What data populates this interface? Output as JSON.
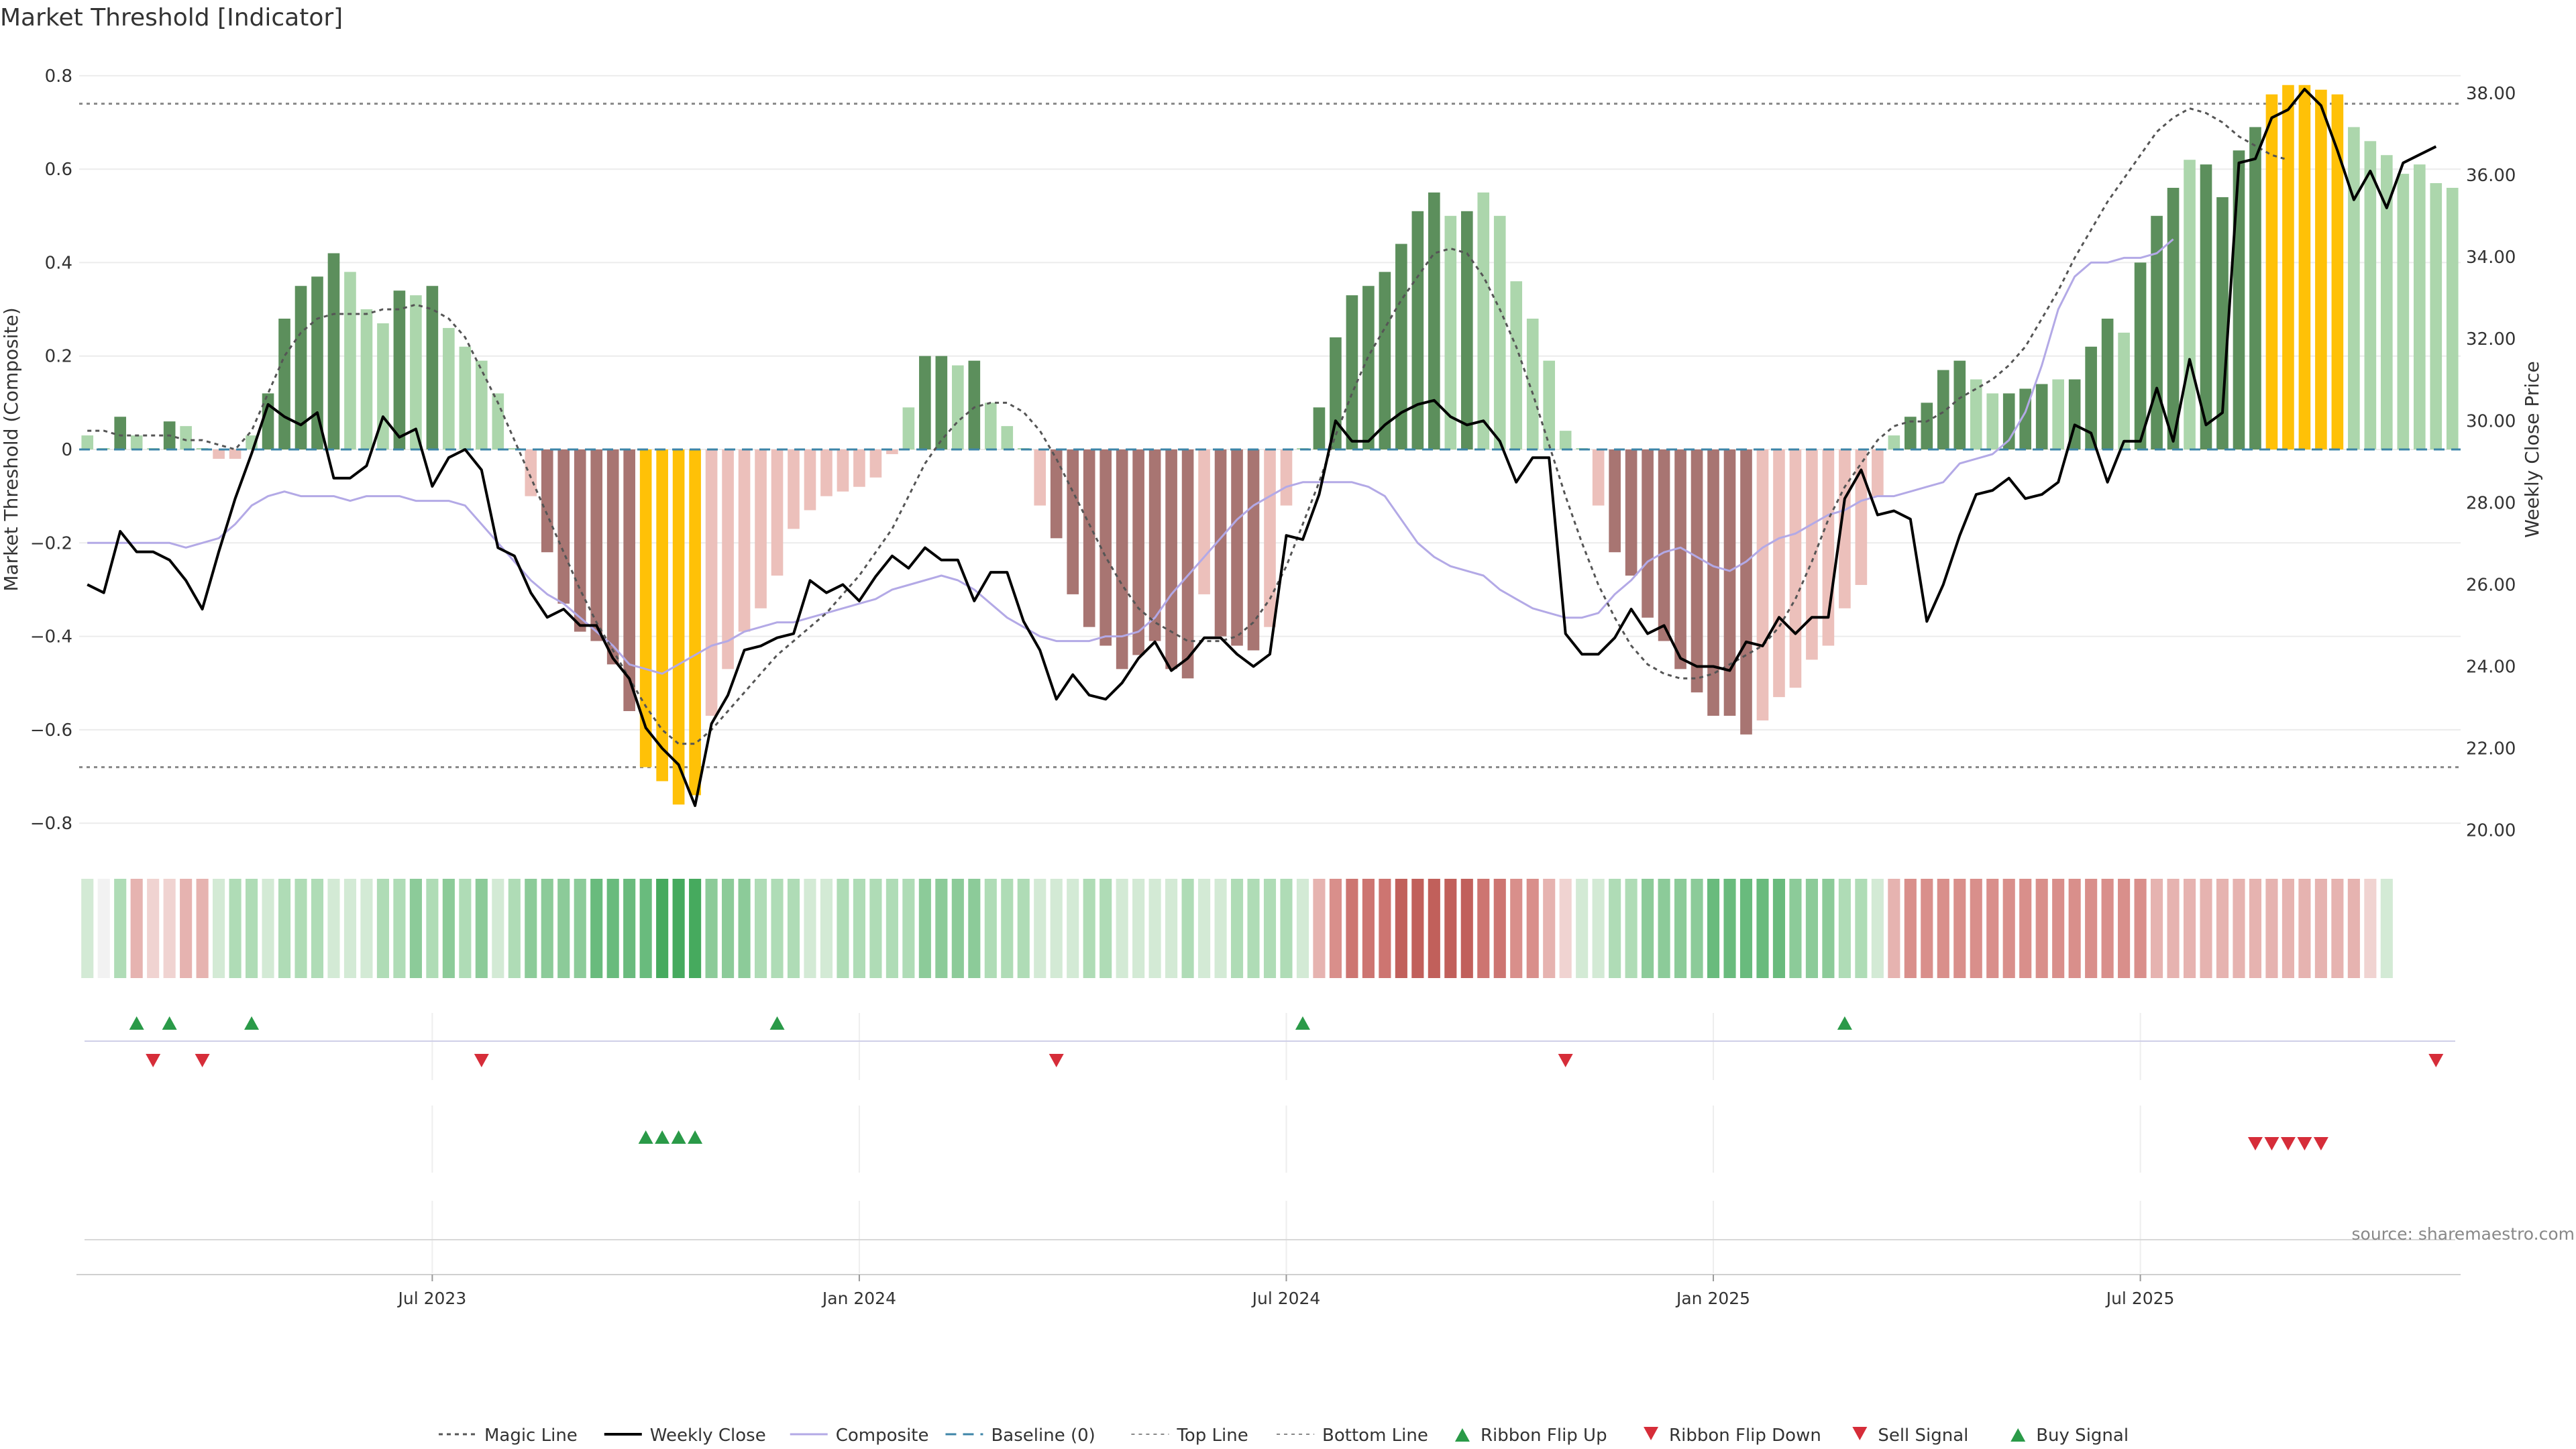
{
  "title": "Market Threshold [Indicator]",
  "source_note": "source: sharemaestro.com",
  "colors": {
    "strong_green": "#5c8f5c",
    "light_green": "#acd6ac",
    "strong_red": "#a87572",
    "light_red": "#ecc0bb",
    "extreme": "#ffc107",
    "weekly_close": "#000000",
    "composite": "#b3a9e6",
    "magic_line": "#555555",
    "baseline": "#3d85a8",
    "threshold_line": "#888888",
    "buy_signal": "#2a9a48",
    "sell_signal": "#d62d39"
  },
  "chart_data": {
    "type": "bar",
    "title": "Market Threshold [Indicator]",
    "x_tick_labels": [
      "Jul 2023",
      "Jan 2024",
      "Jul 2024",
      "Jan 2025",
      "Jul 2025"
    ],
    "x_tick_indices": [
      21,
      47,
      73,
      99,
      125
    ],
    "left_axis": {
      "label": "Market Threshold (Composite)",
      "ylim": [
        -0.85,
        0.85
      ],
      "ticks": [
        -0.8,
        -0.6,
        -0.4,
        -0.2,
        0,
        0.2,
        0.4,
        0.6,
        0.8
      ],
      "tick_labels": [
        "−0.8",
        "−0.6",
        "−0.4",
        "−0.2",
        "0",
        "0.2",
        "0.4",
        "0.6",
        "0.8"
      ]
    },
    "right_axis": {
      "label": "Weekly Close Price",
      "ylim": [
        19.6,
        39.0
      ],
      "ticks": [
        20,
        22,
        24,
        26,
        28,
        30,
        32,
        34,
        36,
        38
      ],
      "tick_labels": [
        "20.00",
        "22.00",
        "24.00",
        "26.00",
        "28.00",
        "30.00",
        "32.00",
        "34.00",
        "36.00",
        "38.00"
      ]
    },
    "top_line": 0.74,
    "bottom_line": -0.68,
    "threshold_bars": [
      0.03,
      0.0,
      0.07,
      0.03,
      0.0,
      0.06,
      0.05,
      0.0,
      -0.02,
      -0.02,
      0.03,
      0.12,
      0.28,
      0.35,
      0.37,
      0.42,
      0.38,
      0.3,
      0.27,
      0.34,
      0.33,
      0.35,
      0.26,
      0.22,
      0.19,
      0.12,
      0.0,
      -0.1,
      -0.22,
      -0.33,
      -0.39,
      -0.41,
      -0.46,
      -0.56,
      -0.68,
      -0.71,
      -0.76,
      -0.74,
      -0.57,
      -0.47,
      -0.39,
      -0.34,
      -0.27,
      -0.17,
      -0.13,
      -0.1,
      -0.09,
      -0.08,
      -0.06,
      -0.01,
      0.09,
      0.2,
      0.2,
      0.18,
      0.19,
      0.1,
      0.05,
      0.0,
      -0.12,
      -0.19,
      -0.31,
      -0.38,
      -0.42,
      -0.47,
      -0.44,
      -0.41,
      -0.47,
      -0.49,
      -0.31,
      -0.4,
      -0.42,
      -0.43,
      -0.38,
      -0.12,
      0.0,
      0.09,
      0.24,
      0.33,
      0.35,
      0.38,
      0.44,
      0.51,
      0.55,
      0.5,
      0.51,
      0.55,
      0.5,
      0.36,
      0.28,
      0.19,
      0.04,
      0.0,
      -0.12,
      -0.22,
      -0.27,
      -0.36,
      -0.41,
      -0.47,
      -0.52,
      -0.57,
      -0.57,
      -0.61,
      -0.58,
      -0.53,
      -0.51,
      -0.45,
      -0.42,
      -0.34,
      -0.29,
      -0.1,
      0.03,
      0.07,
      0.1,
      0.17,
      0.19,
      0.15,
      0.12,
      0.12,
      0.13,
      0.14,
      0.15,
      0.15,
      0.22,
      0.28,
      0.25,
      0.4,
      0.5,
      0.56,
      0.62,
      0.61,
      0.54,
      0.64,
      0.69,
      0.76,
      0.78,
      0.78,
      0.77,
      0.76,
      0.69,
      0.66,
      0.63,
      0.59,
      0.61,
      0.57,
      0.56
    ],
    "bar_class": [
      "lg",
      "lg",
      "sg",
      "lg",
      "lg",
      "sg",
      "lg",
      "lg",
      "lr",
      "lr",
      "lg",
      "sg",
      "sg",
      "sg",
      "sg",
      "sg",
      "lg",
      "lg",
      "lg",
      "sg",
      "lg",
      "sg",
      "lg",
      "lg",
      "lg",
      "lg",
      "lg",
      "lr",
      "sr",
      "sr",
      "sr",
      "sr",
      "sr",
      "sr",
      "ex",
      "ex",
      "ex",
      "ex",
      "lr",
      "lr",
      "lr",
      "lr",
      "lr",
      "lr",
      "lr",
      "lr",
      "lr",
      "lr",
      "lr",
      "lr",
      "lg",
      "sg",
      "sg",
      "lg",
      "sg",
      "lg",
      "lg",
      "lg",
      "lr",
      "sr",
      "sr",
      "sr",
      "sr",
      "sr",
      "sr",
      "sr",
      "sr",
      "sr",
      "lr",
      "sr",
      "sr",
      "sr",
      "lr",
      "lr",
      "lg",
      "sg",
      "sg",
      "sg",
      "sg",
      "sg",
      "sg",
      "sg",
      "sg",
      "lg",
      "sg",
      "lg",
      "lg",
      "lg",
      "lg",
      "lg",
      "lg",
      "lg",
      "lr",
      "sr",
      "sr",
      "sr",
      "sr",
      "sr",
      "sr",
      "sr",
      "sr",
      "sr",
      "lr",
      "lr",
      "lr",
      "lr",
      "lr",
      "lr",
      "lr",
      "lr",
      "lg",
      "sg",
      "sg",
      "sg",
      "sg",
      "lg",
      "lg",
      "sg",
      "sg",
      "sg",
      "lg",
      "sg",
      "sg",
      "sg",
      "lg",
      "sg",
      "sg",
      "sg",
      "lg",
      "sg",
      "sg",
      "sg",
      "sg",
      "ex",
      "ex",
      "ex",
      "ex",
      "ex",
      "lg",
      "lg",
      "lg",
      "lg",
      "lg",
      "lg",
      "lg"
    ],
    "series": [
      {
        "name": "Weekly Close",
        "axis": "right",
        "values": [
          26.0,
          25.8,
          27.3,
          26.8,
          26.8,
          26.6,
          26.1,
          25.4,
          26.8,
          28.1,
          29.2,
          30.4,
          30.1,
          29.9,
          30.2,
          28.6,
          28.6,
          28.9,
          30.1,
          29.6,
          29.8,
          28.4,
          29.1,
          29.3,
          28.8,
          26.9,
          26.7,
          25.8,
          25.2,
          25.4,
          25.0,
          25.0,
          24.2,
          23.7,
          22.5,
          22.0,
          21.6,
          20.6,
          22.6,
          23.3,
          24.4,
          24.5,
          24.7,
          24.8,
          26.1,
          25.8,
          26.0,
          25.6,
          26.2,
          26.7,
          26.4,
          26.9,
          26.6,
          26.6,
          25.6,
          26.3,
          26.3,
          25.1,
          24.4,
          23.2,
          23.8,
          23.3,
          23.2,
          23.6,
          24.2,
          24.6,
          23.9,
          24.2,
          24.7,
          24.7,
          24.3,
          24.0,
          24.3,
          27.2,
          27.1,
          28.2,
          30.0,
          29.5,
          29.5,
          29.9,
          30.2,
          30.4,
          30.5,
          30.1,
          29.9,
          30.0,
          29.5,
          28.5,
          29.1,
          29.1,
          24.8,
          24.3,
          24.3,
          24.7,
          25.4,
          24.8,
          25.0,
          24.2,
          24.0,
          24.0,
          23.9,
          24.6,
          24.5,
          25.2,
          24.8,
          25.2,
          25.2,
          28.1,
          28.8,
          27.7,
          27.8,
          27.6,
          25.1,
          26.0,
          27.2,
          28.2,
          28.3,
          28.6,
          28.1,
          28.2,
          28.5,
          29.9,
          29.7,
          28.5,
          29.5,
          29.5,
          30.8,
          29.5,
          31.5,
          29.9,
          30.2,
          36.3,
          36.4,
          37.4,
          37.6,
          38.1,
          37.7,
          36.6,
          35.4,
          36.1,
          35.2,
          36.3,
          36.5,
          36.7
        ]
      },
      {
        "name": "Composite",
        "axis": "left",
        "values": [
          -0.2,
          -0.2,
          -0.2,
          -0.2,
          -0.2,
          -0.2,
          -0.21,
          -0.2,
          -0.19,
          -0.16,
          -0.12,
          -0.1,
          -0.09,
          -0.1,
          -0.1,
          -0.1,
          -0.11,
          -0.1,
          -0.1,
          -0.1,
          -0.11,
          -0.11,
          -0.11,
          -0.12,
          -0.16,
          -0.2,
          -0.24,
          -0.28,
          -0.31,
          -0.33,
          -0.36,
          -0.39,
          -0.42,
          -0.46,
          -0.47,
          -0.48,
          -0.46,
          -0.44,
          -0.42,
          -0.41,
          -0.39,
          -0.38,
          -0.37,
          -0.37,
          -0.36,
          -0.35,
          -0.34,
          -0.33,
          -0.32,
          -0.3,
          -0.29,
          -0.28,
          -0.27,
          -0.28,
          -0.3,
          -0.33,
          -0.36,
          -0.38,
          -0.4,
          -0.41,
          -0.41,
          -0.41,
          -0.4,
          -0.4,
          -0.39,
          -0.36,
          -0.31,
          -0.27,
          -0.23,
          -0.19,
          -0.15,
          -0.12,
          -0.1,
          -0.08,
          -0.07,
          -0.07,
          -0.07,
          -0.07,
          -0.08,
          -0.1,
          -0.15,
          -0.2,
          -0.23,
          -0.25,
          -0.26,
          -0.27,
          -0.3,
          -0.32,
          -0.34,
          -0.35,
          -0.36,
          -0.36,
          -0.35,
          -0.31,
          -0.28,
          -0.24,
          -0.22,
          -0.21,
          -0.23,
          -0.25,
          -0.26,
          -0.24,
          -0.21,
          -0.19,
          -0.18,
          -0.16,
          -0.14,
          -0.13,
          -0.11,
          -0.1,
          -0.1,
          -0.09,
          -0.08,
          -0.07,
          -0.03,
          -0.02,
          -0.01,
          0.02,
          0.08,
          0.18,
          0.3,
          0.37,
          0.4,
          0.4,
          0.41,
          0.41,
          0.42,
          0.45
        ]
      },
      {
        "name": "Magic Line",
        "axis": "left",
        "values": [
          0.04,
          0.04,
          0.03,
          0.03,
          0.03,
          0.03,
          0.02,
          0.02,
          0.01,
          0.0,
          0.04,
          0.12,
          0.2,
          0.25,
          0.28,
          0.29,
          0.29,
          0.29,
          0.3,
          0.3,
          0.31,
          0.3,
          0.28,
          0.24,
          0.17,
          0.1,
          0.02,
          -0.06,
          -0.14,
          -0.22,
          -0.3,
          -0.37,
          -0.43,
          -0.49,
          -0.55,
          -0.6,
          -0.63,
          -0.63,
          -0.6,
          -0.56,
          -0.52,
          -0.48,
          -0.44,
          -0.41,
          -0.38,
          -0.35,
          -0.31,
          -0.27,
          -0.22,
          -0.17,
          -0.1,
          -0.03,
          0.02,
          0.06,
          0.09,
          0.1,
          0.1,
          0.08,
          0.04,
          -0.02,
          -0.09,
          -0.16,
          -0.23,
          -0.29,
          -0.34,
          -0.37,
          -0.39,
          -0.41,
          -0.41,
          -0.41,
          -0.4,
          -0.37,
          -0.32,
          -0.25,
          -0.16,
          -0.07,
          0.03,
          0.12,
          0.2,
          0.26,
          0.32,
          0.37,
          0.42,
          0.43,
          0.42,
          0.37,
          0.3,
          0.22,
          0.12,
          0.01,
          -0.1,
          -0.2,
          -0.29,
          -0.36,
          -0.42,
          -0.46,
          -0.48,
          -0.49,
          -0.49,
          -0.48,
          -0.46,
          -0.44,
          -0.42,
          -0.38,
          -0.32,
          -0.24,
          -0.15,
          -0.08,
          -0.03,
          0.02,
          0.05,
          0.06,
          0.06,
          0.08,
          0.11,
          0.13,
          0.15,
          0.18,
          0.22,
          0.28,
          0.34,
          0.41,
          0.47,
          0.53,
          0.58,
          0.63,
          0.68,
          0.71,
          0.73,
          0.72,
          0.7,
          0.67,
          0.65,
          0.63,
          0.62
        ]
      }
    ],
    "ribbon": [
      1,
      0,
      2,
      -2,
      -1,
      -1,
      -2,
      -2,
      1,
      2,
      2,
      1,
      2,
      2,
      2,
      1,
      1,
      1,
      2,
      2,
      3,
      2,
      3,
      2,
      3,
      1,
      2,
      3,
      3,
      3,
      3,
      4,
      4,
      4,
      4,
      5,
      5,
      5,
      3,
      3,
      3,
      2,
      2,
      2,
      1,
      1,
      2,
      2,
      2,
      2,
      2,
      3,
      3,
      3,
      3,
      2,
      2,
      2,
      1,
      1,
      1,
      2,
      2,
      1,
      1,
      1,
      1,
      2,
      1,
      1,
      2,
      2,
      2,
      2,
      1,
      -2,
      -3,
      -4,
      -4,
      -4,
      -5,
      -5,
      -5,
      -5,
      -5,
      -4,
      -4,
      -3,
      -3,
      -2,
      -1,
      1,
      1,
      2,
      2,
      3,
      3,
      3,
      3,
      4,
      4,
      4,
      4,
      4,
      3,
      3,
      3,
      2,
      2,
      1,
      -2,
      -3,
      -3,
      -3,
      -3,
      -3,
      -3,
      -3,
      -3,
      -3,
      -3,
      -3,
      -3,
      -3,
      -3,
      -3,
      -2,
      -2,
      -2,
      -2,
      -2,
      -2,
      -2,
      -2,
      -2,
      -2,
      -2,
      -2,
      -2,
      -1,
      1
    ],
    "ribbon_flip_up": [
      3,
      5,
      10,
      42,
      74,
      107
    ],
    "ribbon_flip_down": [
      4,
      7,
      24,
      59,
      90,
      143
    ],
    "buy_signal": [
      34,
      35,
      36,
      37
    ],
    "sell_signal": [
      132,
      133,
      134,
      135,
      136
    ],
    "legend": [
      "Magic Line",
      "Weekly Close",
      "Composite",
      "Baseline (0)",
      "Top Line",
      "Bottom Line",
      "Ribbon Flip Up",
      "Ribbon Flip Down",
      "Sell Signal",
      "Buy Signal"
    ]
  }
}
